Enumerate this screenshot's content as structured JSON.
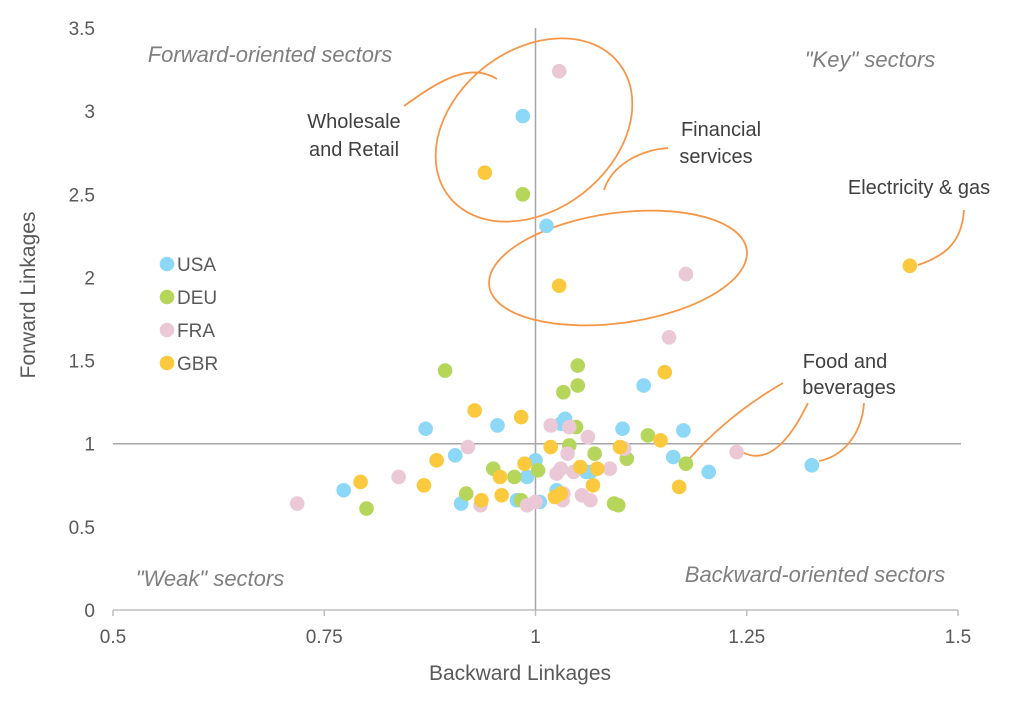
{
  "chart_data": {
    "type": "scatter",
    "title": "",
    "xlabel": "Backward Linkages",
    "ylabel": "Forward Linkages",
    "xlim": [
      0.5,
      1.5
    ],
    "ylim": [
      0,
      3.5
    ],
    "x_ticks": [
      "0.5",
      "0.75",
      "1",
      "1.25",
      "1.5"
    ],
    "y_ticks": [
      "0",
      "0.5",
      "1",
      "1.5",
      "2",
      "2.5",
      "3",
      "3.5"
    ],
    "grid": false,
    "reference_lines": {
      "x": 1,
      "y": 1
    },
    "legend_position": "left",
    "quadrant_labels": {
      "top_left": "Forward-oriented sectors",
      "top_right": "\"Key\" sectors",
      "bottom_left": "\"Weak\" sectors",
      "bottom_right": "Backward-oriented sectors"
    },
    "annotations": [
      {
        "id": "wholesale",
        "lines": [
          "Wholesale",
          "and Retail"
        ]
      },
      {
        "id": "financial",
        "lines": [
          "Financial",
          "services"
        ]
      },
      {
        "id": "electricity",
        "lines": [
          "Electricity & gas"
        ]
      },
      {
        "id": "food",
        "lines": [
          "Food and",
          "beverages"
        ]
      }
    ],
    "series": [
      {
        "name": "USA",
        "color": "#8dd7f7",
        "points": [
          [
            0.985,
            2.97
          ],
          [
            1.013,
            2.31
          ],
          [
            0.773,
            0.72
          ],
          [
            0.87,
            1.09
          ],
          [
            0.905,
            0.93
          ],
          [
            0.912,
            0.64
          ],
          [
            0.955,
            1.11
          ],
          [
            0.978,
            0.66
          ],
          [
            0.99,
            0.8
          ],
          [
            1.0,
            0.9
          ],
          [
            1.005,
            0.65
          ],
          [
            1.025,
            0.72
          ],
          [
            1.03,
            1.12
          ],
          [
            1.035,
            1.15
          ],
          [
            1.06,
            0.83
          ],
          [
            1.065,
            0.83
          ],
          [
            1.103,
            1.09
          ],
          [
            1.128,
            1.35
          ],
          [
            1.163,
            0.92
          ],
          [
            1.175,
            1.08
          ],
          [
            1.205,
            0.83
          ],
          [
            1.327,
            0.87
          ]
        ]
      },
      {
        "name": "DEU",
        "color": "#b5d65a",
        "points": [
          [
            0.985,
            2.5
          ],
          [
            0.893,
            1.44
          ],
          [
            0.8,
            0.61
          ],
          [
            0.918,
            0.7
          ],
          [
            0.95,
            0.85
          ],
          [
            0.975,
            0.8
          ],
          [
            0.983,
            0.66
          ],
          [
            1.003,
            0.84
          ],
          [
            1.033,
            1.31
          ],
          [
            1.04,
            0.99
          ],
          [
            1.048,
            1.1
          ],
          [
            1.05,
            1.47
          ],
          [
            1.05,
            1.35
          ],
          [
            1.07,
            0.94
          ],
          [
            1.093,
            0.64
          ],
          [
            1.098,
            0.63
          ],
          [
            1.108,
            0.91
          ],
          [
            1.133,
            1.05
          ],
          [
            1.178,
            0.88
          ]
        ]
      },
      {
        "name": "FRA",
        "color": "#eac8d6",
        "points": [
          [
            1.028,
            3.24
          ],
          [
            1.178,
            2.02
          ],
          [
            1.158,
            1.64
          ],
          [
            0.718,
            0.64
          ],
          [
            0.838,
            0.8
          ],
          [
            0.92,
            0.98
          ],
          [
            0.935,
            0.63
          ],
          [
            0.99,
            0.63
          ],
          [
            1.0,
            0.65
          ],
          [
            1.018,
            1.11
          ],
          [
            1.025,
            0.82
          ],
          [
            1.03,
            0.85
          ],
          [
            1.032,
            0.66
          ],
          [
            1.033,
            0.7
          ],
          [
            1.038,
            0.94
          ],
          [
            1.04,
            1.1
          ],
          [
            1.045,
            0.83
          ],
          [
            1.055,
            0.69
          ],
          [
            1.062,
            1.04
          ],
          [
            1.065,
            0.66
          ],
          [
            1.088,
            0.85
          ],
          [
            1.105,
            0.97
          ],
          [
            1.238,
            0.95
          ]
        ]
      },
      {
        "name": "GBR",
        "color": "#fbc93d",
        "points": [
          [
            1.443,
            2.07
          ],
          [
            0.94,
            2.63
          ],
          [
            1.028,
            1.95
          ],
          [
            1.153,
            1.43
          ],
          [
            0.928,
            1.2
          ],
          [
            0.983,
            1.16
          ],
          [
            0.793,
            0.77
          ],
          [
            0.868,
            0.75
          ],
          [
            0.883,
            0.9
          ],
          [
            0.936,
            0.66
          ],
          [
            0.958,
            0.8
          ],
          [
            0.96,
            0.69
          ],
          [
            0.987,
            0.88
          ],
          [
            1.018,
            0.98
          ],
          [
            1.023,
            0.68
          ],
          [
            1.03,
            0.7
          ],
          [
            1.053,
            0.86
          ],
          [
            1.068,
            0.75
          ],
          [
            1.073,
            0.85
          ],
          [
            1.1,
            0.98
          ],
          [
            1.148,
            1.02
          ],
          [
            1.17,
            0.74
          ]
        ]
      }
    ]
  }
}
